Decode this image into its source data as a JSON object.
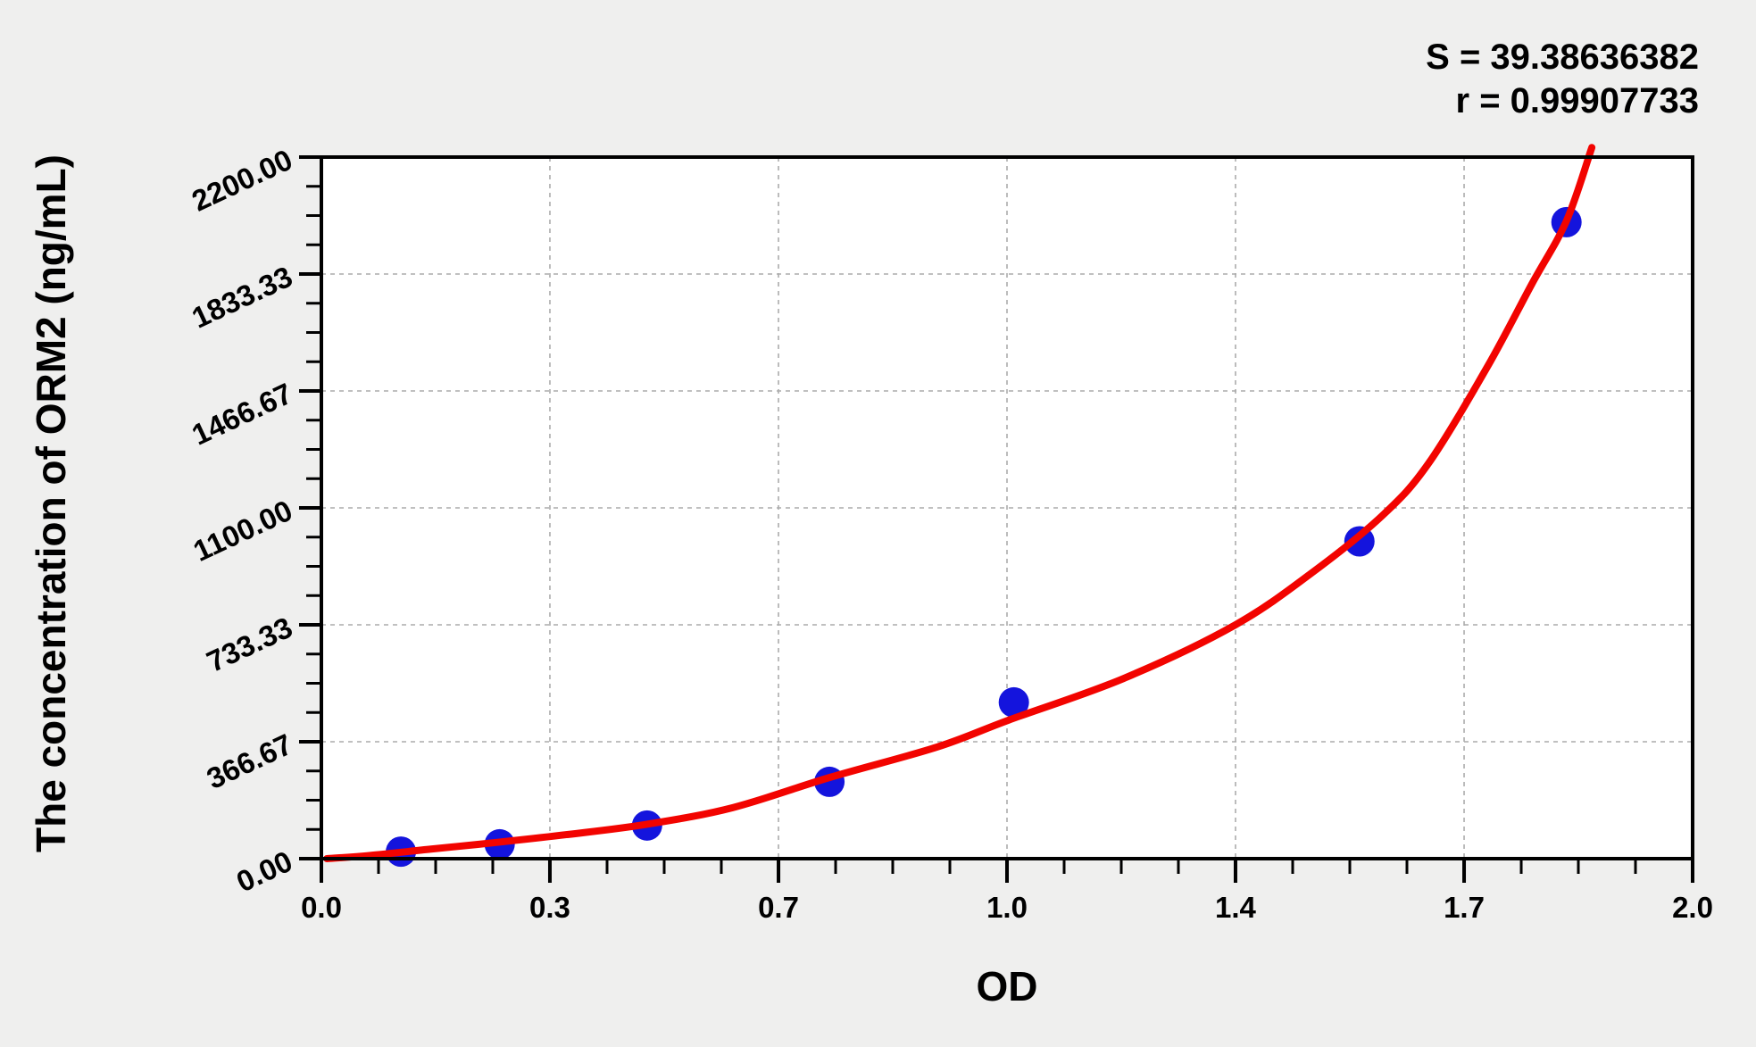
{
  "annotations": {
    "s_label": "S = 39.38636382",
    "r_label": "r = 0.99907733"
  },
  "axes": {
    "x": {
      "title": "OD",
      "min": 0,
      "max": 2,
      "major_tick_values": [
        0,
        0.3333,
        0.6667,
        1.0,
        1.3333,
        1.6667,
        2.0
      ],
      "major_tick_labels": [
        "0.0",
        "0.3",
        "0.7",
        "1.0",
        "1.4",
        "1.7",
        "2.0"
      ],
      "minor_divisions_per_major": 4
    },
    "y": {
      "title": "The concentration of ORM2 (ng/mL)",
      "min": 0,
      "max": 2200,
      "major_tick_values": [
        0,
        366.67,
        733.33,
        1100.0,
        1466.67,
        1833.33,
        2200.0
      ],
      "major_tick_labels": [
        "0.00",
        "366.67",
        "733.33",
        "1100.00",
        "1466.67",
        "1833.33",
        "2200.00"
      ],
      "minor_divisions_per_major": 4
    }
  },
  "colors": {
    "background": "#efefee",
    "plot_background": "#ffffff",
    "axis": "#000000",
    "grid": "#ababab",
    "curve": "#f20400",
    "point": "#1414dd"
  },
  "chart_data": {
    "type": "scatter",
    "title": "",
    "xlabel": "OD",
    "ylabel": "The concentration of ORM2 (ng/mL)",
    "xlim": [
      0,
      2
    ],
    "ylim": [
      0,
      2200
    ],
    "grid": "dashed, on major ticks",
    "legend": "none",
    "stats": {
      "S": 39.38636382,
      "r": 0.99907733
    },
    "series": [
      {
        "name": "standard points",
        "kind": "scatter",
        "points_od_conc": [
          [
            0.116,
            22
          ],
          [
            0.26,
            45
          ],
          [
            0.475,
            104
          ],
          [
            0.741,
            241
          ],
          [
            1.01,
            490
          ],
          [
            1.514,
            995
          ],
          [
            1.816,
            1996
          ]
        ]
      },
      {
        "name": "fitted standard curve",
        "kind": "line",
        "points_od_conc": [
          [
            0.008,
            0
          ],
          [
            0.07,
            10
          ],
          [
            0.16,
            30
          ],
          [
            0.26,
            52
          ],
          [
            0.36,
            76
          ],
          [
            0.475,
            108
          ],
          [
            0.6,
            160
          ],
          [
            0.742,
            255
          ],
          [
            0.898,
            350
          ],
          [
            1.003,
            435
          ],
          [
            1.17,
            565
          ],
          [
            1.333,
            733
          ],
          [
            1.45,
            905
          ],
          [
            1.549,
            1079
          ],
          [
            1.615,
            1240
          ],
          [
            1.7,
            1540
          ],
          [
            1.765,
            1800
          ],
          [
            1.816,
            2000
          ],
          [
            1.853,
            2230
          ]
        ]
      }
    ]
  }
}
